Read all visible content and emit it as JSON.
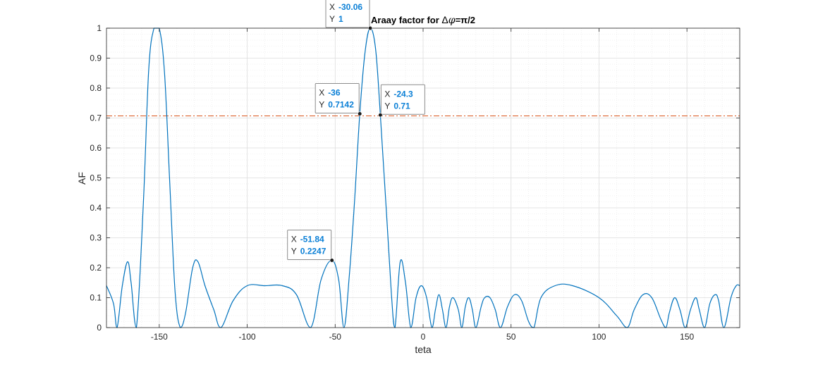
{
  "chart_data": {
    "type": "line",
    "title": "Araay factor for Δφ=π/2",
    "title_parts": {
      "prefix": "Araay factor for ",
      "delta": "Δ",
      "phi": "φ",
      "rest": "=π/2"
    },
    "xlabel": "teta",
    "ylabel": "AF",
    "xlim": [
      -180,
      180
    ],
    "ylim": [
      0,
      1
    ],
    "xticks": [
      -150,
      -100,
      -50,
      0,
      50,
      100,
      150
    ],
    "yticks": [
      0,
      0.1,
      0.2,
      0.3,
      0.4,
      0.5,
      0.6,
      0.7,
      0.8,
      0.9,
      1
    ],
    "grid": true,
    "minor_grid": true,
    "series": [
      {
        "color": "#0072bd",
        "x": [
          -180,
          -176,
          -174,
          -171,
          -168,
          -166,
          -163,
          -159,
          -156,
          -153,
          -150,
          -147,
          -144,
          -141,
          -138,
          -135,
          -131,
          -128,
          -124,
          -119,
          -115,
          -108,
          -100,
          -90,
          -80,
          -72,
          -64,
          -58,
          -52,
          -48,
          -45,
          -42,
          -39,
          -36,
          -33,
          -30.06,
          -27,
          -24.3,
          -21,
          -18,
          -16,
          -13,
          -10,
          -7,
          -4,
          -1,
          2,
          5,
          7,
          9,
          11,
          13,
          15,
          17,
          20,
          22,
          24,
          26,
          28,
          30,
          33,
          35,
          38,
          41,
          44,
          48,
          52,
          56,
          60,
          63,
          67,
          75,
          85,
          100,
          110,
          116,
          120,
          125,
          130,
          135,
          138,
          140,
          143,
          146,
          149,
          152,
          155,
          157,
          160,
          163,
          166,
          168,
          171,
          175,
          178,
          180
        ],
        "y": [
          0.14,
          0.08,
          0,
          0.14,
          0.22,
          0.15,
          0,
          0.42,
          0.86,
          1.0,
          1.0,
          0.85,
          0.48,
          0.12,
          0,
          0.05,
          0.2,
          0.22,
          0.14,
          0.06,
          0,
          0.09,
          0.14,
          0.14,
          0.14,
          0.11,
          0,
          0.16,
          0.2247,
          0.16,
          0,
          0.17,
          0.42,
          0.7142,
          0.92,
          1.0,
          0.93,
          0.71,
          0.4,
          0.11,
          0,
          0.22,
          0.15,
          0,
          0.1,
          0.14,
          0.1,
          0,
          0.06,
          0.11,
          0.06,
          0,
          0.07,
          0.1,
          0.06,
          0,
          0.07,
          0.1,
          0.06,
          0,
          0.07,
          0.1,
          0.1,
          0.06,
          0,
          0.07,
          0.11,
          0.09,
          0.02,
          0,
          0.1,
          0.14,
          0.14,
          0.1,
          0.04,
          0,
          0.06,
          0.11,
          0.1,
          0.03,
          0,
          0.05,
          0.1,
          0.06,
          0,
          0.06,
          0.1,
          0.06,
          0,
          0.08,
          0.11,
          0.09,
          0,
          0.1,
          0.14,
          0.14
        ]
      }
    ],
    "reference_lines": [
      {
        "orientation": "horizontal",
        "value": 0.707,
        "color": "#d95319",
        "style": "dash-dot"
      }
    ],
    "data_tips": [
      {
        "x_key": "X",
        "y_key": "Y",
        "x": -30.06,
        "y": 1,
        "x_text": "-30.06",
        "y_text": "1",
        "placement": "left"
      },
      {
        "x_key": "X",
        "y_key": "Y",
        "x": -36,
        "y": 0.7142,
        "x_text": "-36",
        "y_text": "0.7142",
        "placement": "left"
      },
      {
        "x_key": "X",
        "y_key": "Y",
        "x": -24.3,
        "y": 0.71,
        "x_text": "-24.3",
        "y_text": "0.71",
        "placement": "right"
      },
      {
        "x_key": "X",
        "y_key": "Y",
        "x": -51.84,
        "y": 0.2247,
        "x_text": "-51.84",
        "y_text": "0.2247",
        "placement": "left"
      }
    ]
  }
}
